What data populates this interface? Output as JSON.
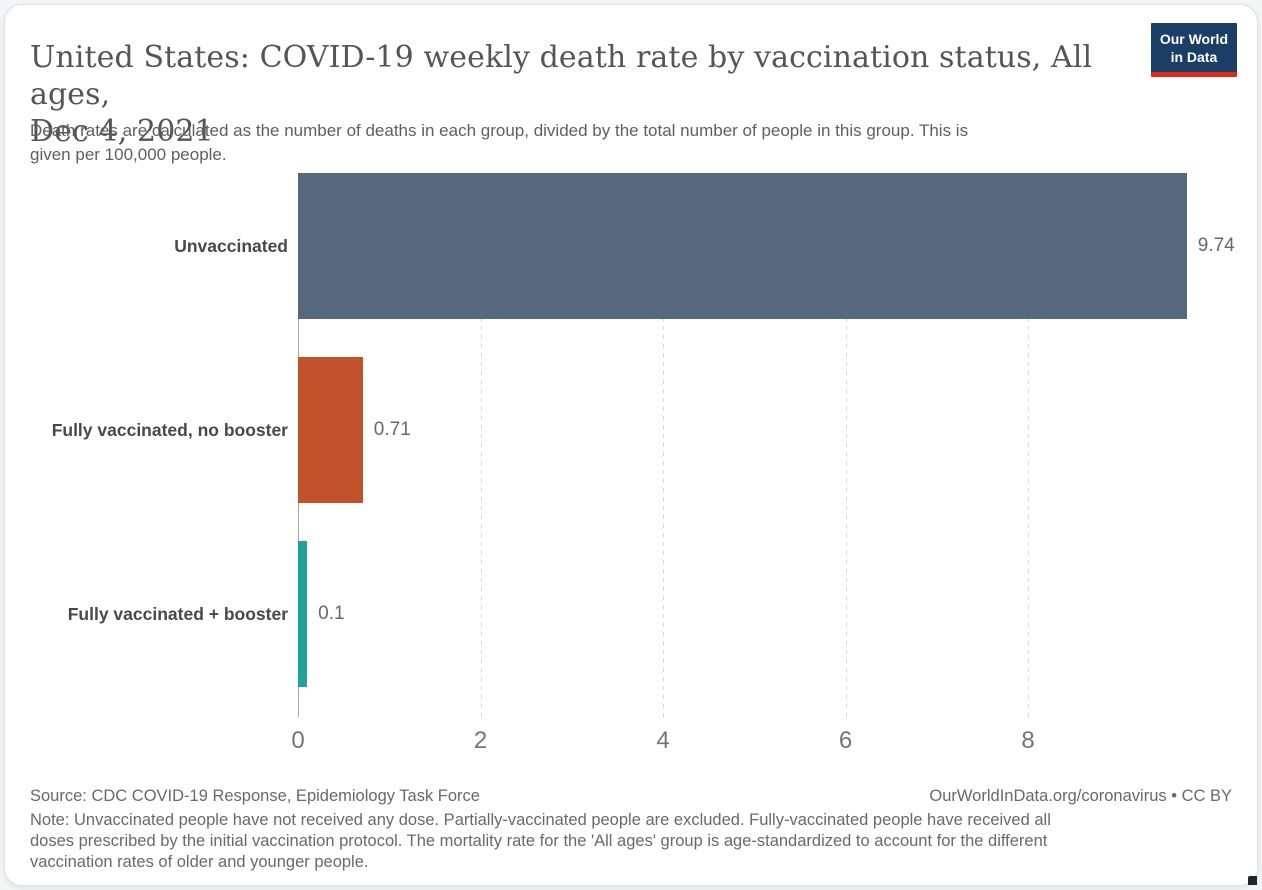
{
  "header": {
    "title_lines": [
      "United States: COVID-19 weekly death rate by vaccination status, All ages,",
      "Dec 4, 2021"
    ],
    "subtitle_lines": [
      "Death rates are calculated as the number of deaths in each group, divided by the total number of people in this group. This is",
      "given per 100,000 people."
    ]
  },
  "logo": {
    "line1": "Our World",
    "line2": "in Data",
    "bg_color": "#1a3e66",
    "accent_color": "#dc2a19"
  },
  "chart_data": {
    "type": "bar",
    "orientation": "horizontal",
    "title": "United States: COVID-19 weekly death rate by vaccination status, All ages, Dec 4, 2021",
    "subtitle": "Death rates are calculated as the number of deaths in each group, divided by the total number of people in this group. This is given per 100,000 people.",
    "categories": [
      "Unvaccinated",
      "Fully vaccinated, no booster",
      "Fully vaccinated + booster"
    ],
    "values": [
      9.74,
      0.71,
      0.1
    ],
    "value_labels": [
      "9.74",
      "0.71",
      "0.1"
    ],
    "bar_colors": [
      "#57687E",
      "#C2522B",
      "#22A39A"
    ],
    "unit": "deaths per 100,000 people",
    "xlabel": "",
    "ylabel": "",
    "xticks": [
      0,
      2,
      4,
      6,
      8
    ],
    "xlim": [
      0,
      10.35
    ],
    "grid": "dashed-vertical-gridlines"
  },
  "footer": {
    "source": "Source: CDC COVID-19 Response, Epidemiology Task Force",
    "license": "OurWorldInData.org/coronavirus • CC BY",
    "note_lines": [
      "Note: Unvaccinated people have not received any dose. Partially-vaccinated people are excluded. Fully-vaccinated people have received all",
      "doses prescribed by the initial vaccination protocol. The mortality rate for the 'All ages' group is age-standardized to account for the different",
      "vaccination rates of older and younger people."
    ]
  }
}
